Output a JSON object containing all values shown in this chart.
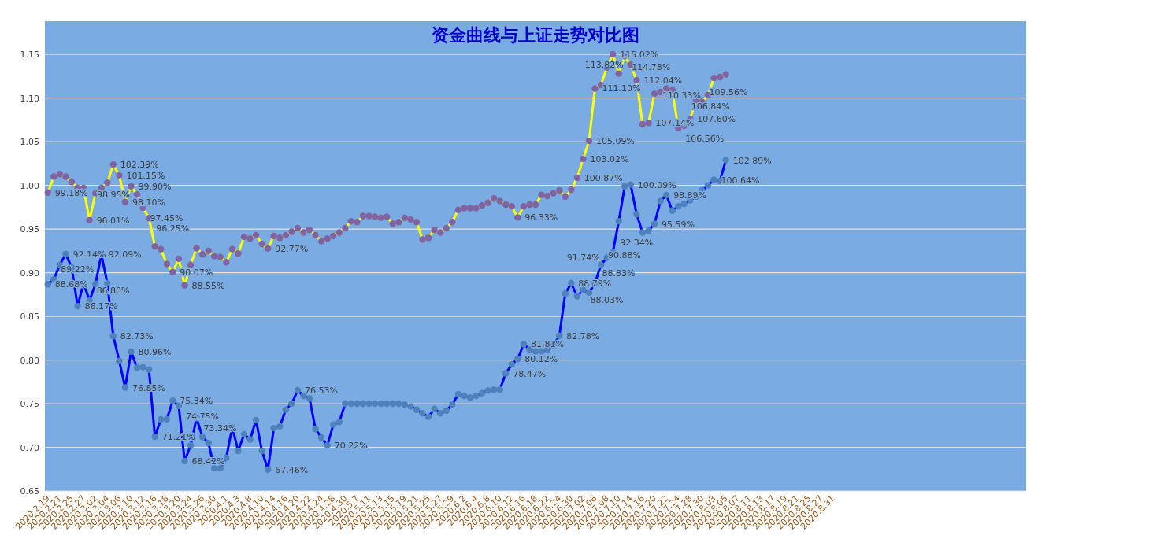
{
  "chart_data": {
    "type": "line",
    "title": "资金曲线与上证走势对比图",
    "categories": [
      "2020.2.19",
      null,
      "2020.2.21",
      null,
      "2020.2.25",
      null,
      "2020.2.27",
      null,
      "2020.3.02",
      null,
      "2020.3.04",
      null,
      "2020.3.06",
      null,
      "2020.3.10",
      null,
      "2020.3.12",
      null,
      "2020.3.16",
      null,
      "2020.3.18",
      null,
      "2020.3.20",
      null,
      "2020.3.24",
      null,
      "2020.3.26",
      null,
      "2020.3.30",
      null,
      "2020.4.1",
      null,
      "2020.4.3",
      null,
      "2020.4.8",
      null,
      "2020.4.10",
      null,
      "2020.4.14",
      null,
      "2020.4.16",
      null,
      "2020.4.20",
      null,
      "2020.4.22",
      null,
      "2020.4.24",
      null,
      "2020.4.28",
      null,
      "2020.4.30",
      null,
      "2020.5.7",
      null,
      "2020.5.11",
      null,
      "2020.5.13",
      null,
      "2020.5.15",
      null,
      "2020.5.19",
      null,
      "2020.5.21",
      null,
      "2020.5.25",
      null,
      "2020.5.27",
      null,
      "2020.5.29",
      null,
      "2020.6.2",
      null,
      "2020.6.4",
      null,
      "2020.6.8",
      null,
      "2020.6.10",
      null,
      "2020.6.12",
      null,
      "2020.6.16",
      null,
      "2020.6.18",
      null,
      "2020.6.22",
      null,
      "2020.6.24",
      null,
      "2020.6.30",
      null,
      "2020.7.02",
      null,
      "2020.7.06",
      null,
      "2020.7.08",
      null,
      "2020.7.10",
      null,
      "2020.7.14",
      null,
      "2020.7.16",
      null,
      "2020.7.20",
      null,
      "2020.7.22",
      null,
      "2020.7.24",
      null,
      "2020.7.28",
      null,
      "2020.7.30",
      null,
      "2020.8.03",
      null,
      "2020.8.05",
      null,
      "2020.8.07",
      null,
      "2020.8.11",
      null,
      "2020.8.13",
      null,
      "2020.8.17",
      null,
      "2020.8.19",
      null,
      "2020.8.21",
      null,
      "2020.8.25",
      null,
      "2020.8.27",
      null,
      "2020.8.31",
      null,
      null,
      null,
      null,
      null,
      null,
      null,
      null,
      null,
      null,
      null,
      null,
      null,
      null,
      null,
      null,
      null,
      null,
      null,
      null,
      null,
      null,
      null,
      null,
      null,
      null,
      null,
      null,
      null,
      null,
      null,
      null
    ],
    "ylim": [
      0.65,
      1.188
    ],
    "yticks": [
      {
        "value": 0.65,
        "label": "0.65"
      },
      {
        "value": 0.7,
        "label": "0.70"
      },
      {
        "value": 0.75,
        "label": "0.75"
      },
      {
        "value": 0.8,
        "label": "0.80"
      },
      {
        "value": 0.85,
        "label": "0.85"
      },
      {
        "value": 0.9,
        "label": "0.90"
      },
      {
        "value": 0.95,
        "label": "0.95"
      },
      {
        "value": 1.0,
        "label": "1.00"
      },
      {
        "value": 1.05,
        "label": "1.05"
      },
      {
        "value": 1.1,
        "label": "1.10"
      },
      {
        "value": 1.15,
        "label": "1.15"
      }
    ],
    "grid": "y",
    "marker": "circle",
    "line_style": "solid",
    "series": [
      {
        "color": "#ffff00",
        "colors": [
          "#8064a2",
          "#8064a2",
          "#8064a2",
          "#8064a2",
          "#8064a2",
          "#8064a2",
          "#8064a2",
          "#8064a2",
          "#8064a2",
          "#8064a2",
          "#8064a2",
          "#8064a2",
          "#8064a2",
          "#8064a2",
          "#8064a2",
          "#8064a2",
          "#8064a2",
          "#8064a2",
          "#8064a2",
          "#8064a2",
          "#8064a2",
          "#8064a2",
          "#8064a2",
          "#8064a2",
          "#8064a2",
          "#8064a2",
          "#8064a2",
          "#8064a2",
          "#8064a2",
          "#8064a2",
          "#8064a2",
          "#8064a2",
          "#8064a2",
          "#8064a2",
          "#8064a2",
          "#8064a2",
          "#8064a2",
          "#8064a2",
          "#8064a2",
          "#8064a2",
          "#8064a2",
          "#8064a2",
          "#8064a2",
          "#8064a2",
          "#8064a2",
          "#8064a2",
          "#8064a2",
          "#8064a2",
          "#8064a2",
          "#8064a2",
          "#8064a2",
          "#8064a2",
          "#8064a2",
          "#8064a2",
          "#8064a2",
          "#8064a2",
          "#8064a2",
          "#8064a2",
          "#8064a2",
          "#8064a2",
          "#8064a2",
          "#8064a2",
          "#8064a2",
          "#8064a2",
          "#8064a2",
          "#8064a2",
          "#8064a2",
          "#8064a2",
          "#8064a2",
          "#8064a2",
          "#8064a2",
          "#8064a2",
          "#8064a2",
          "#8064a2",
          "#8064a2",
          "#8064a2",
          "#8064a2",
          "#8064a2",
          "#8064a2",
          "#8064a2",
          "#8064a2",
          "#8064a2",
          "#8064a2",
          "#8064a2",
          "#8064a2",
          "#8064a2",
          "#8064a2",
          "#8064a2",
          "#8064a2",
          "#8064a2",
          "#8064a2",
          "#8064a2",
          "#8064a2",
          "#8064a2",
          "#8064a2",
          "#8064a2",
          "#8064a2",
          "#8064a2",
          "#8064a2",
          "#8064a2",
          "#8064a2",
          "#8064a2",
          "#8064a2",
          "#8064a2",
          "#8064a2",
          "#8064a2",
          "#8064a2",
          "#8064a2",
          "#8064a2",
          "#8064a2",
          "#8064a2",
          "#8064a2",
          "#8064a2",
          "#8064a2",
          "#8064a2",
          null,
          null,
          null,
          null,
          null,
          null,
          null,
          null,
          null,
          null,
          null,
          null,
          null,
          null,
          null,
          null,
          null,
          null,
          null,
          null,
          null,
          null,
          null,
          null,
          null,
          null,
          null,
          null,
          null,
          null,
          null,
          null,
          null,
          null,
          null,
          null,
          null,
          null,
          null,
          null,
          null,
          null,
          null,
          null,
          null,
          null,
          null,
          null,
          null,
          null
        ],
        "values": [
          0.9918,
          1.01,
          1.013,
          1.01,
          1.004,
          0.997,
          0.997,
          0.9601,
          0.991,
          0.997,
          1.003,
          1.0239,
          1.0115,
          0.981,
          0.999,
          0.9895,
          0.9745,
          0.9625,
          0.93,
          0.927,
          0.91,
          0.9007,
          0.916,
          0.8855,
          0.909,
          0.928,
          0.921,
          0.925,
          0.919,
          0.918,
          0.912,
          0.927,
          0.922,
          0.941,
          0.939,
          0.943,
          0.933,
          0.9277,
          0.942,
          0.94,
          0.943,
          0.947,
          0.951,
          0.946,
          0.949,
          0.943,
          0.936,
          0.939,
          0.942,
          0.946,
          0.951,
          0.959,
          0.958,
          0.965,
          0.965,
          0.964,
          0.963,
          0.964,
          0.956,
          0.958,
          0.963,
          0.961,
          0.958,
          0.938,
          0.94,
          0.949,
          0.946,
          0.951,
          0.958,
          0.972,
          0.974,
          0.974,
          0.974,
          0.977,
          0.98,
          0.985,
          0.982,
          0.978,
          0.976,
          0.9633,
          0.976,
          0.978,
          0.978,
          0.989,
          0.988,
          0.991,
          0.994,
          0.987,
          0.995,
          1.0087,
          1.0302,
          1.0509,
          1.111,
          1.115,
          1.135,
          1.1502,
          1.128,
          1.1478,
          1.1382,
          1.1204,
          1.07,
          1.0714,
          1.105,
          1.107,
          1.111,
          1.109,
          1.0656,
          1.0684,
          1.076,
          1.098,
          1.0956,
          1.1033,
          1.123,
          1.124,
          1.127,
          null,
          null,
          null,
          null,
          null,
          null,
          null,
          null,
          null,
          null,
          null,
          null,
          null,
          null,
          null,
          null,
          null,
          null,
          null,
          null,
          null,
          null,
          null,
          null,
          null,
          null,
          null,
          null,
          null,
          null,
          null,
          null,
          null,
          null,
          null,
          null,
          null,
          null,
          null,
          null,
          null,
          null,
          null,
          null,
          null,
          null,
          null,
          null,
          null,
          null
        ],
        "value_labels": [
          "99.18%",
          null,
          null,
          null,
          null,
          null,
          null,
          "96.01%",
          null,
          null,
          null,
          "102.39%",
          "101.15%",
          "98.10%",
          "99.90%",
          "98.95%",
          "97.45%",
          "96.25%",
          null,
          null,
          null,
          "90.07%",
          null,
          "88.55%",
          null,
          null,
          null,
          null,
          null,
          null,
          null,
          null,
          null,
          null,
          null,
          null,
          null,
          "92.77%",
          null,
          null,
          null,
          null,
          null,
          null,
          null,
          null,
          null,
          null,
          null,
          null,
          null,
          null,
          null,
          null,
          null,
          null,
          null,
          null,
          null,
          null,
          null,
          null,
          null,
          null,
          null,
          null,
          null,
          null,
          null,
          null,
          null,
          null,
          null,
          null,
          null,
          null,
          null,
          null,
          null,
          "96.33%",
          null,
          null,
          null,
          null,
          null,
          null,
          null,
          null,
          null,
          "100.87%",
          "103.02%",
          "105.09%",
          "111.10%",
          null,
          null,
          "115.02%",
          null,
          "114.78%",
          "113.82%",
          "112.04%",
          null,
          "107.14%",
          null,
          null,
          null,
          null,
          "106.56%",
          "106.84%",
          "107.60%",
          null,
          "109.56%",
          "110.33%",
          null,
          null,
          null,
          null,
          null,
          null,
          null,
          null,
          null,
          null,
          null,
          null,
          null,
          null,
          null,
          null,
          null,
          null,
          null,
          null,
          null,
          null,
          null,
          null,
          null,
          null,
          null,
          null,
          null,
          null,
          null,
          null,
          null,
          null,
          null,
          null,
          null,
          null,
          null,
          null,
          null,
          null,
          null,
          null,
          null,
          null,
          null,
          null,
          null,
          null,
          null,
          null,
          null
        ]
      },
      {
        "color": "#0000ff",
        "colors": [
          "#4f81bd",
          "#4f81bd",
          "#4f81bd",
          "#4f81bd",
          "#4f81bd",
          "#4f81bd",
          "#4f81bd",
          "#4f81bd",
          "#4f81bd",
          "#4f81bd",
          "#4f81bd",
          "#4f81bd",
          "#4f81bd",
          "#4f81bd",
          "#4f81bd",
          "#4f81bd",
          "#4f81bd",
          "#4f81bd",
          "#4f81bd",
          "#4f81bd",
          "#4f81bd",
          "#4f81bd",
          "#4f81bd",
          "#4f81bd",
          "#4f81bd",
          "#4f81bd",
          "#4f81bd",
          "#4f81bd",
          "#4f81bd",
          "#4f81bd",
          "#4f81bd",
          "#4f81bd",
          "#4f81bd",
          "#4f81bd",
          "#4f81bd",
          "#4f81bd",
          "#4f81bd",
          "#4f81bd",
          "#4f81bd",
          "#4f81bd",
          "#4f81bd",
          "#4f81bd",
          "#4f81bd",
          "#4f81bd",
          "#4f81bd",
          "#4f81bd",
          "#4f81bd",
          "#4f81bd",
          "#4f81bd",
          "#4f81bd",
          "#4f81bd",
          "#4f81bd",
          "#4f81bd",
          "#4f81bd",
          "#4f81bd",
          "#4f81bd",
          "#4f81bd",
          "#4f81bd",
          "#4f81bd",
          "#4f81bd",
          "#4f81bd",
          "#4f81bd",
          "#4f81bd",
          "#4f81bd",
          "#4f81bd",
          "#4f81bd",
          "#4f81bd",
          "#4f81bd",
          "#4f81bd",
          "#4f81bd",
          "#4f81bd",
          "#4f81bd",
          "#4f81bd",
          "#4f81bd",
          "#4f81bd",
          "#4f81bd",
          "#4f81bd",
          "#4f81bd",
          "#4f81bd",
          "#4f81bd",
          "#4f81bd",
          "#4f81bd",
          "#4f81bd",
          "#4f81bd",
          "#4f81bd",
          "#4f81bd",
          "#4f81bd",
          "#4f81bd",
          "#4f81bd",
          "#4f81bd",
          "#4f81bd",
          "#4f81bd",
          "#4f81bd",
          "#4f81bd",
          "#4f81bd",
          "#4f81bd",
          "#4f81bd",
          "#4f81bd",
          "#4f81bd",
          "#4f81bd",
          "#4f81bd",
          "#4f81bd",
          "#4f81bd",
          "#4f81bd",
          "#4f81bd",
          "#4f81bd",
          "#4f81bd",
          "#4f81bd",
          "#4f81bd",
          "#4f81bd",
          "#4f81bd",
          "#4f81bd",
          "#4f81bd",
          "#4f81bd",
          "#4f81bd",
          null,
          null,
          null,
          null,
          null,
          null,
          null,
          null,
          null,
          null,
          null,
          null,
          null,
          null,
          null,
          null,
          null,
          null,
          null,
          null,
          null,
          null,
          null,
          null,
          null,
          null,
          null,
          null,
          null,
          null,
          null,
          null,
          null,
          null,
          null,
          null,
          null,
          null,
          null,
          null,
          null,
          null,
          null,
          null,
          null,
          null,
          null,
          null,
          null,
          null
        ],
        "values": [
          0.8868,
          0.8922,
          0.909,
          0.9214,
          0.906,
          0.8617,
          0.888,
          0.868,
          0.887,
          0.9209,
          0.888,
          0.8273,
          0.799,
          0.7685,
          0.8096,
          0.791,
          0.792,
          0.789,
          0.7121,
          0.732,
          0.732,
          0.7534,
          0.7475,
          0.6842,
          0.702,
          0.7334,
          0.712,
          0.705,
          0.676,
          0.676,
          0.688,
          0.723,
          0.696,
          0.715,
          0.709,
          0.731,
          0.696,
          0.6746,
          0.722,
          0.724,
          0.743,
          0.75,
          0.7653,
          0.759,
          0.756,
          0.721,
          0.711,
          0.7022,
          0.726,
          0.729,
          0.75,
          0.75,
          0.75,
          0.75,
          0.75,
          0.75,
          0.75,
          0.75,
          0.75,
          0.75,
          0.749,
          0.747,
          0.743,
          0.739,
          0.735,
          0.744,
          0.739,
          0.742,
          0.749,
          0.761,
          0.759,
          0.757,
          0.759,
          0.762,
          0.765,
          0.766,
          0.766,
          0.7847,
          0.795,
          0.8012,
          0.8181,
          0.812,
          0.81,
          0.81,
          0.812,
          0.816,
          0.8278,
          0.876,
          0.8879,
          0.873,
          0.8803,
          0.877,
          0.8883,
          0.9088,
          0.9174,
          0.9234,
          0.959,
          0.999,
          1.0009,
          0.967,
          0.946,
          0.948,
          0.9559,
          0.982,
          0.9889,
          0.971,
          0.976,
          0.979,
          0.983,
          0.987,
          0.994,
          1.0,
          1.0064,
          1.005,
          1.0289,
          null,
          null,
          null,
          null,
          null,
          null,
          null,
          null,
          null,
          null,
          null,
          null,
          null,
          null,
          null,
          null,
          null,
          null,
          null,
          null,
          null,
          null,
          null,
          null,
          null,
          null,
          null,
          null,
          null,
          null,
          null,
          null,
          null,
          null,
          null,
          null,
          null,
          null,
          null,
          null,
          null,
          null,
          null,
          null,
          null,
          null,
          null,
          null,
          null,
          null
        ],
        "value_labels": [
          "88.68%",
          "89.22%",
          null,
          "92.14%",
          null,
          "86.17%",
          null,
          "86.80%",
          null,
          "92.09%",
          null,
          "82.73%",
          null,
          "76.85%",
          "80.96%",
          null,
          null,
          null,
          "71.21%",
          null,
          null,
          "75.34%",
          "74.75%",
          "68.42%",
          null,
          "73.34%",
          null,
          null,
          null,
          null,
          null,
          null,
          null,
          null,
          null,
          null,
          null,
          "67.46%",
          null,
          null,
          null,
          null,
          "76.53%",
          null,
          null,
          null,
          null,
          "70.22%",
          null,
          null,
          null,
          null,
          null,
          null,
          null,
          null,
          null,
          null,
          null,
          null,
          null,
          null,
          null,
          null,
          null,
          null,
          null,
          null,
          null,
          null,
          null,
          null,
          null,
          null,
          null,
          null,
          null,
          "78.47%",
          null,
          "80.12%",
          "81.81%",
          null,
          null,
          null,
          null,
          null,
          "82.78%",
          null,
          "88.79%",
          null,
          "88.03%",
          null,
          "88.83%",
          "90.88%",
          "91.74%",
          "92.34%",
          null,
          null,
          "100.09%",
          null,
          null,
          null,
          "95.59%",
          null,
          "98.89%",
          null,
          null,
          null,
          null,
          null,
          null,
          null,
          "100.64%",
          null,
          "102.89%",
          null,
          null,
          null,
          null,
          null,
          null,
          null,
          null,
          null,
          null,
          null,
          null,
          null,
          null,
          null,
          null,
          null,
          null,
          null,
          null,
          null,
          null,
          null,
          null,
          null,
          null,
          null,
          null,
          null,
          null,
          null,
          null,
          null,
          null,
          null,
          null,
          null,
          null,
          null,
          null,
          null,
          null,
          null,
          null,
          null,
          null,
          null,
          null,
          null,
          null
        ]
      }
    ]
  }
}
